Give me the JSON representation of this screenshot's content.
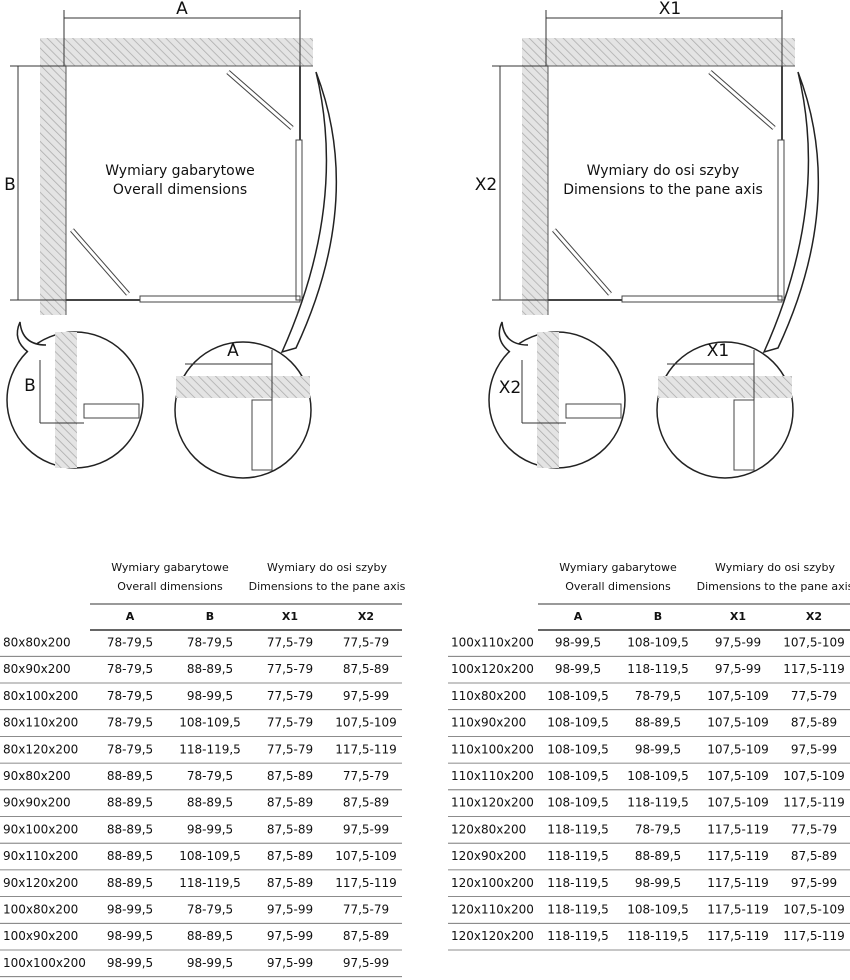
{
  "diagrams": [
    {
      "dim_top": "A",
      "dim_side": "B",
      "caption_pl": "Wymiary gabarytowe",
      "caption_en": "Overall dimensions",
      "detail_side": "B",
      "detail_top": "A"
    },
    {
      "dim_top": "X1",
      "dim_side": "X2",
      "caption_pl": "Wymiary do osi szyby",
      "caption_en": "Dimensions to the pane axis",
      "detail_side": "X2",
      "detail_top": "X1"
    }
  ],
  "tables": [
    {
      "group_headers": [
        [
          "Wymiary gabarytowe",
          "Overall dimensions"
        ],
        [
          "Wymiary do osi szyby",
          "Dimensions to the pane axis"
        ]
      ],
      "columns": [
        "A",
        "B",
        "X1",
        "X2"
      ],
      "rows": [
        [
          "80x80x200",
          "78-79,5",
          "78-79,5",
          "77,5-79",
          "77,5-79"
        ],
        [
          "80x90x200",
          "78-79,5",
          "88-89,5",
          "77,5-79",
          "87,5-89"
        ],
        [
          "80x100x200",
          "78-79,5",
          "98-99,5",
          "77,5-79",
          "97,5-99"
        ],
        [
          "80x110x200",
          "78-79,5",
          "108-109,5",
          "77,5-79",
          "107,5-109"
        ],
        [
          "80x120x200",
          "78-79,5",
          "118-119,5",
          "77,5-79",
          "117,5-119"
        ],
        [
          "90x80x200",
          "88-89,5",
          "78-79,5",
          "87,5-89",
          "77,5-79"
        ],
        [
          "90x90x200",
          "88-89,5",
          "88-89,5",
          "87,5-89",
          "87,5-89"
        ],
        [
          "90x100x200",
          "88-89,5",
          "98-99,5",
          "87,5-89",
          "97,5-99"
        ],
        [
          "90x110x200",
          "88-89,5",
          "108-109,5",
          "87,5-89",
          "107,5-109"
        ],
        [
          "90x120x200",
          "88-89,5",
          "118-119,5",
          "87,5-89",
          "117,5-119"
        ],
        [
          "100x80x200",
          "98-99,5",
          "78-79,5",
          "97,5-99",
          "77,5-79"
        ],
        [
          "100x90x200",
          "98-99,5",
          "88-89,5",
          "97,5-99",
          "87,5-89"
        ],
        [
          "100x100x200",
          "98-99,5",
          "98-99,5",
          "97,5-99",
          "97,5-99"
        ]
      ]
    },
    {
      "group_headers": [
        [
          "Wymiary gabarytowe",
          "Overall dimensions"
        ],
        [
          "Wymiary do osi szyby",
          "Dimensions to the pane axis"
        ]
      ],
      "columns": [
        "A",
        "B",
        "X1",
        "X2"
      ],
      "rows": [
        [
          "100x110x200",
          "98-99,5",
          "108-109,5",
          "97,5-99",
          "107,5-109"
        ],
        [
          "100x120x200",
          "98-99,5",
          "118-119,5",
          "97,5-99",
          "117,5-119"
        ],
        [
          "110x80x200",
          "108-109,5",
          "78-79,5",
          "107,5-109",
          "77,5-79"
        ],
        [
          "110x90x200",
          "108-109,5",
          "88-89,5",
          "107,5-109",
          "87,5-89"
        ],
        [
          "110x100x200",
          "108-109,5",
          "98-99,5",
          "107,5-109",
          "97,5-99"
        ],
        [
          "110x110x200",
          "108-109,5",
          "108-109,5",
          "107,5-109",
          "107,5-109"
        ],
        [
          "110x120x200",
          "108-109,5",
          "118-119,5",
          "107,5-109",
          "117,5-119"
        ],
        [
          "120x80x200",
          "118-119,5",
          "78-79,5",
          "117,5-119",
          "77,5-79"
        ],
        [
          "120x90x200",
          "118-119,5",
          "88-89,5",
          "117,5-119",
          "87,5-89"
        ],
        [
          "120x100x200",
          "118-119,5",
          "98-99,5",
          "117,5-119",
          "97,5-99"
        ],
        [
          "120x110x200",
          "118-119,5",
          "108-109,5",
          "117,5-119",
          "107,5-109"
        ],
        [
          "120x120x200",
          "118-119,5",
          "118-119,5",
          "117,5-119",
          "117,5-119"
        ]
      ]
    }
  ]
}
